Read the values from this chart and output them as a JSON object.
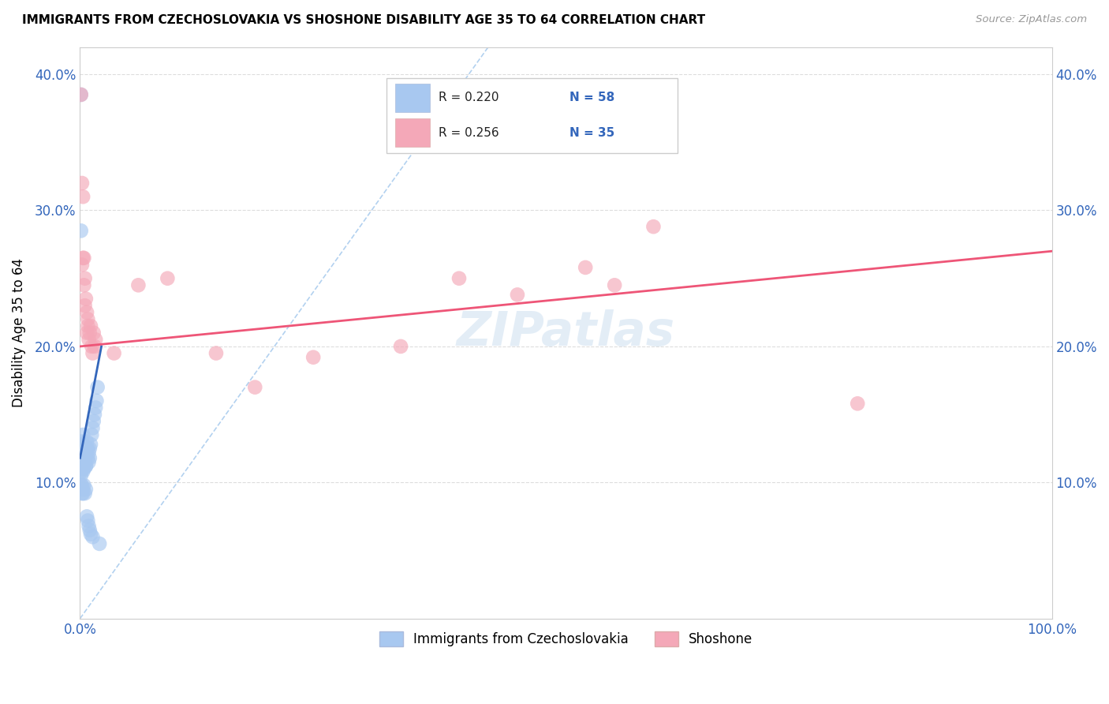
{
  "title": "IMMIGRANTS FROM CZECHOSLOVAKIA VS SHOSHONE DISABILITY AGE 35 TO 64 CORRELATION CHART",
  "source": "Source: ZipAtlas.com",
  "ylabel": "Disability Age 35 to 64",
  "xlim": [
    0,
    1.0
  ],
  "ylim": [
    0,
    0.42
  ],
  "legend_r1": "R = 0.220",
  "legend_n1": "N = 58",
  "legend_r2": "R = 0.256",
  "legend_n2": "N = 35",
  "color_blue": "#A8C8F0",
  "color_pink": "#F4A8B8",
  "line_color_blue": "#3366BB",
  "line_color_pink": "#EE5577",
  "diagonal_color": "#AACCEE",
  "watermark_color": "#C8DCEF",
  "blue_scatter_x": [
    0.001,
    0.001,
    0.002,
    0.002,
    0.002,
    0.003,
    0.003,
    0.003,
    0.004,
    0.004,
    0.005,
    0.005,
    0.006,
    0.006,
    0.007,
    0.007,
    0.008,
    0.008,
    0.009,
    0.009,
    0.01,
    0.01,
    0.011,
    0.012,
    0.013,
    0.014,
    0.015,
    0.016,
    0.017,
    0.018,
    0.001,
    0.001,
    0.002,
    0.002,
    0.003,
    0.003,
    0.004,
    0.004,
    0.005,
    0.006,
    0.001,
    0.001,
    0.002,
    0.002,
    0.002,
    0.003,
    0.003,
    0.004,
    0.005,
    0.006,
    0.007,
    0.008,
    0.009,
    0.01,
    0.011,
    0.013,
    0.02,
    0.001
  ],
  "blue_scatter_y": [
    0.385,
    0.12,
    0.118,
    0.122,
    0.13,
    0.125,
    0.128,
    0.135,
    0.118,
    0.122,
    0.115,
    0.118,
    0.112,
    0.12,
    0.13,
    0.125,
    0.118,
    0.125,
    0.115,
    0.122,
    0.118,
    0.125,
    0.128,
    0.135,
    0.14,
    0.145,
    0.15,
    0.155,
    0.16,
    0.17,
    0.105,
    0.108,
    0.11,
    0.112,
    0.108,
    0.115,
    0.11,
    0.118,
    0.115,
    0.112,
    0.095,
    0.098,
    0.092,
    0.095,
    0.098,
    0.092,
    0.095,
    0.098,
    0.092,
    0.095,
    0.075,
    0.072,
    0.068,
    0.065,
    0.062,
    0.06,
    0.055,
    0.285
  ],
  "pink_scatter_x": [
    0.001,
    0.002,
    0.002,
    0.003,
    0.003,
    0.004,
    0.004,
    0.005,
    0.005,
    0.006,
    0.007,
    0.007,
    0.008,
    0.008,
    0.009,
    0.01,
    0.011,
    0.012,
    0.013,
    0.014,
    0.015,
    0.016,
    0.035,
    0.06,
    0.09,
    0.14,
    0.18,
    0.24,
    0.33,
    0.39,
    0.45,
    0.52,
    0.59,
    0.8,
    0.55
  ],
  "pink_scatter_y": [
    0.385,
    0.32,
    0.26,
    0.265,
    0.31,
    0.265,
    0.245,
    0.25,
    0.23,
    0.235,
    0.225,
    0.21,
    0.215,
    0.22,
    0.205,
    0.21,
    0.215,
    0.2,
    0.195,
    0.21,
    0.2,
    0.205,
    0.195,
    0.245,
    0.25,
    0.195,
    0.17,
    0.192,
    0.2,
    0.25,
    0.238,
    0.258,
    0.288,
    0.158,
    0.245
  ],
  "blue_line_x": [
    0.0,
    0.022
  ],
  "blue_line_y": [
    0.118,
    0.2
  ],
  "pink_line_x": [
    0.0,
    1.0
  ],
  "pink_line_y": [
    0.2,
    0.27
  ]
}
